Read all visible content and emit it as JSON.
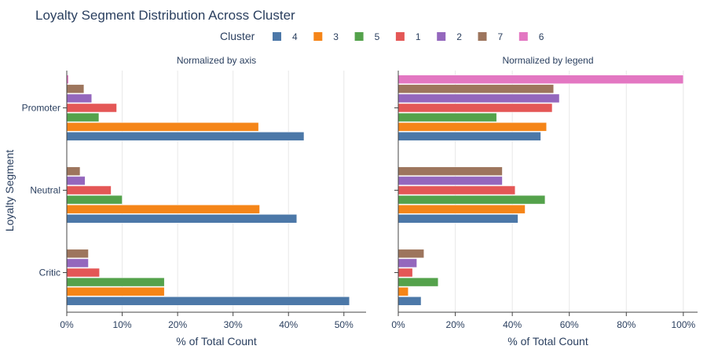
{
  "chart_data": {
    "type": "bar",
    "orientation": "horizontal",
    "title": "Loyalty Segment Distribution Across Cluster",
    "legend": {
      "title": "Cluster",
      "placement": "top-center",
      "entries": [
        {
          "name": "4",
          "color": "#4c78a8"
        },
        {
          "name": "3",
          "color": "#f58518"
        },
        {
          "name": "5",
          "color": "#54a24b"
        },
        {
          "name": "1",
          "color": "#e45756"
        },
        {
          "name": "2",
          "color": "#9467bd"
        },
        {
          "name": "7",
          "color": "#9d755d"
        },
        {
          "name": "6",
          "color": "#e377c2"
        }
      ]
    },
    "ylabel": "Loyalty Segment",
    "categories": [
      "Promoter",
      "Neutral",
      "Critic"
    ],
    "panels": [
      {
        "title": "Normalized by axis",
        "xlabel": "% of Total Count",
        "xlim": [
          0,
          54
        ],
        "xticks": [
          0,
          10,
          20,
          30,
          40,
          50
        ],
        "xtick_labels": [
          "0%",
          "10%",
          "20%",
          "30%",
          "40%",
          "50%"
        ],
        "series": [
          {
            "name": "4",
            "values": [
              42.8,
              41.5,
              51.0
            ]
          },
          {
            "name": "3",
            "values": [
              34.6,
              34.8,
              17.6
            ]
          },
          {
            "name": "5",
            "values": [
              5.8,
              10.0,
              17.6
            ]
          },
          {
            "name": "1",
            "values": [
              9.0,
              8.0,
              5.9
            ]
          },
          {
            "name": "2",
            "values": [
              4.5,
              3.3,
              3.9
            ]
          },
          {
            "name": "7",
            "values": [
              3.1,
              2.4,
              3.9
            ]
          },
          {
            "name": "6",
            "values": [
              0.3,
              0,
              0
            ]
          }
        ]
      },
      {
        "title": "Normalized by legend",
        "xlabel": "% of Total Count",
        "xlim": [
          0,
          105
        ],
        "xticks": [
          0,
          20,
          40,
          60,
          80,
          100
        ],
        "xtick_labels": [
          "0%",
          "20%",
          "40%",
          "60%",
          "80%",
          "100%"
        ],
        "series": [
          {
            "name": "4",
            "values": [
              50.0,
              42.0,
              8.0
            ]
          },
          {
            "name": "3",
            "values": [
              52.0,
              44.5,
              3.5
            ]
          },
          {
            "name": "5",
            "values": [
              34.5,
              51.5,
              14.0
            ]
          },
          {
            "name": "1",
            "values": [
              54.0,
              41.0,
              5.0
            ]
          },
          {
            "name": "2",
            "values": [
              56.5,
              36.5,
              6.5
            ]
          },
          {
            "name": "7",
            "values": [
              54.5,
              36.5,
              9.0
            ]
          },
          {
            "name": "6",
            "values": [
              100.0,
              0,
              0
            ]
          }
        ]
      }
    ]
  }
}
